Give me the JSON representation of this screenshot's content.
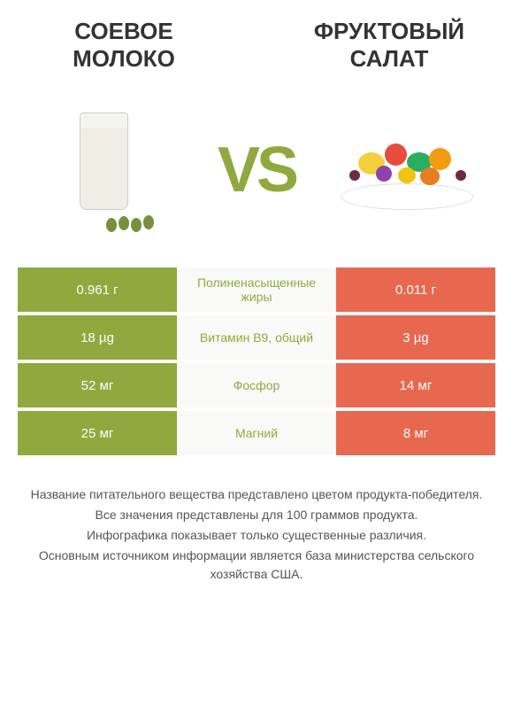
{
  "product_left": {
    "title": "СОЕВОЕ МОЛОКО",
    "color": "#8fa93e"
  },
  "product_right": {
    "title": "ФРУКТОВЫЙ САЛАТ",
    "color": "#e8684f"
  },
  "vs_label": "VS",
  "comparison": {
    "rows": [
      {
        "left_value": "0.961 г",
        "nutrient": "Полиненасыщенные жиры",
        "right_value": "0.011 г",
        "winner_color": "#8fa93e"
      },
      {
        "left_value": "18 µg",
        "nutrient": "Витамин B9, общий",
        "right_value": "3 µg",
        "winner_color": "#8fa93e"
      },
      {
        "left_value": "52 мг",
        "nutrient": "Фосфор",
        "right_value": "14 мг",
        "winner_color": "#8fa93e"
      },
      {
        "left_value": "25 мг",
        "nutrient": "Магний",
        "right_value": "8 мг",
        "winner_color": "#8fa93e"
      }
    ]
  },
  "footer": {
    "line1": "Название питательного вещества представлено цветом продукта-победителя.",
    "line2": "Все значения представлены для 100 граммов продукта.",
    "line3": "Инфографика показывает только существенные различия.",
    "line4": "Основным источником информации является база министерства сельского хозяйства США."
  },
  "styling": {
    "left_bg": "#8fa93e",
    "right_bg": "#e8684f",
    "middle_bg": "#f9f9f7",
    "page_bg": "#ffffff",
    "title_fontsize": 26,
    "vs_fontsize": 72,
    "cell_fontsize": 15,
    "nutrient_fontsize": 14,
    "footer_fontsize": 14
  }
}
